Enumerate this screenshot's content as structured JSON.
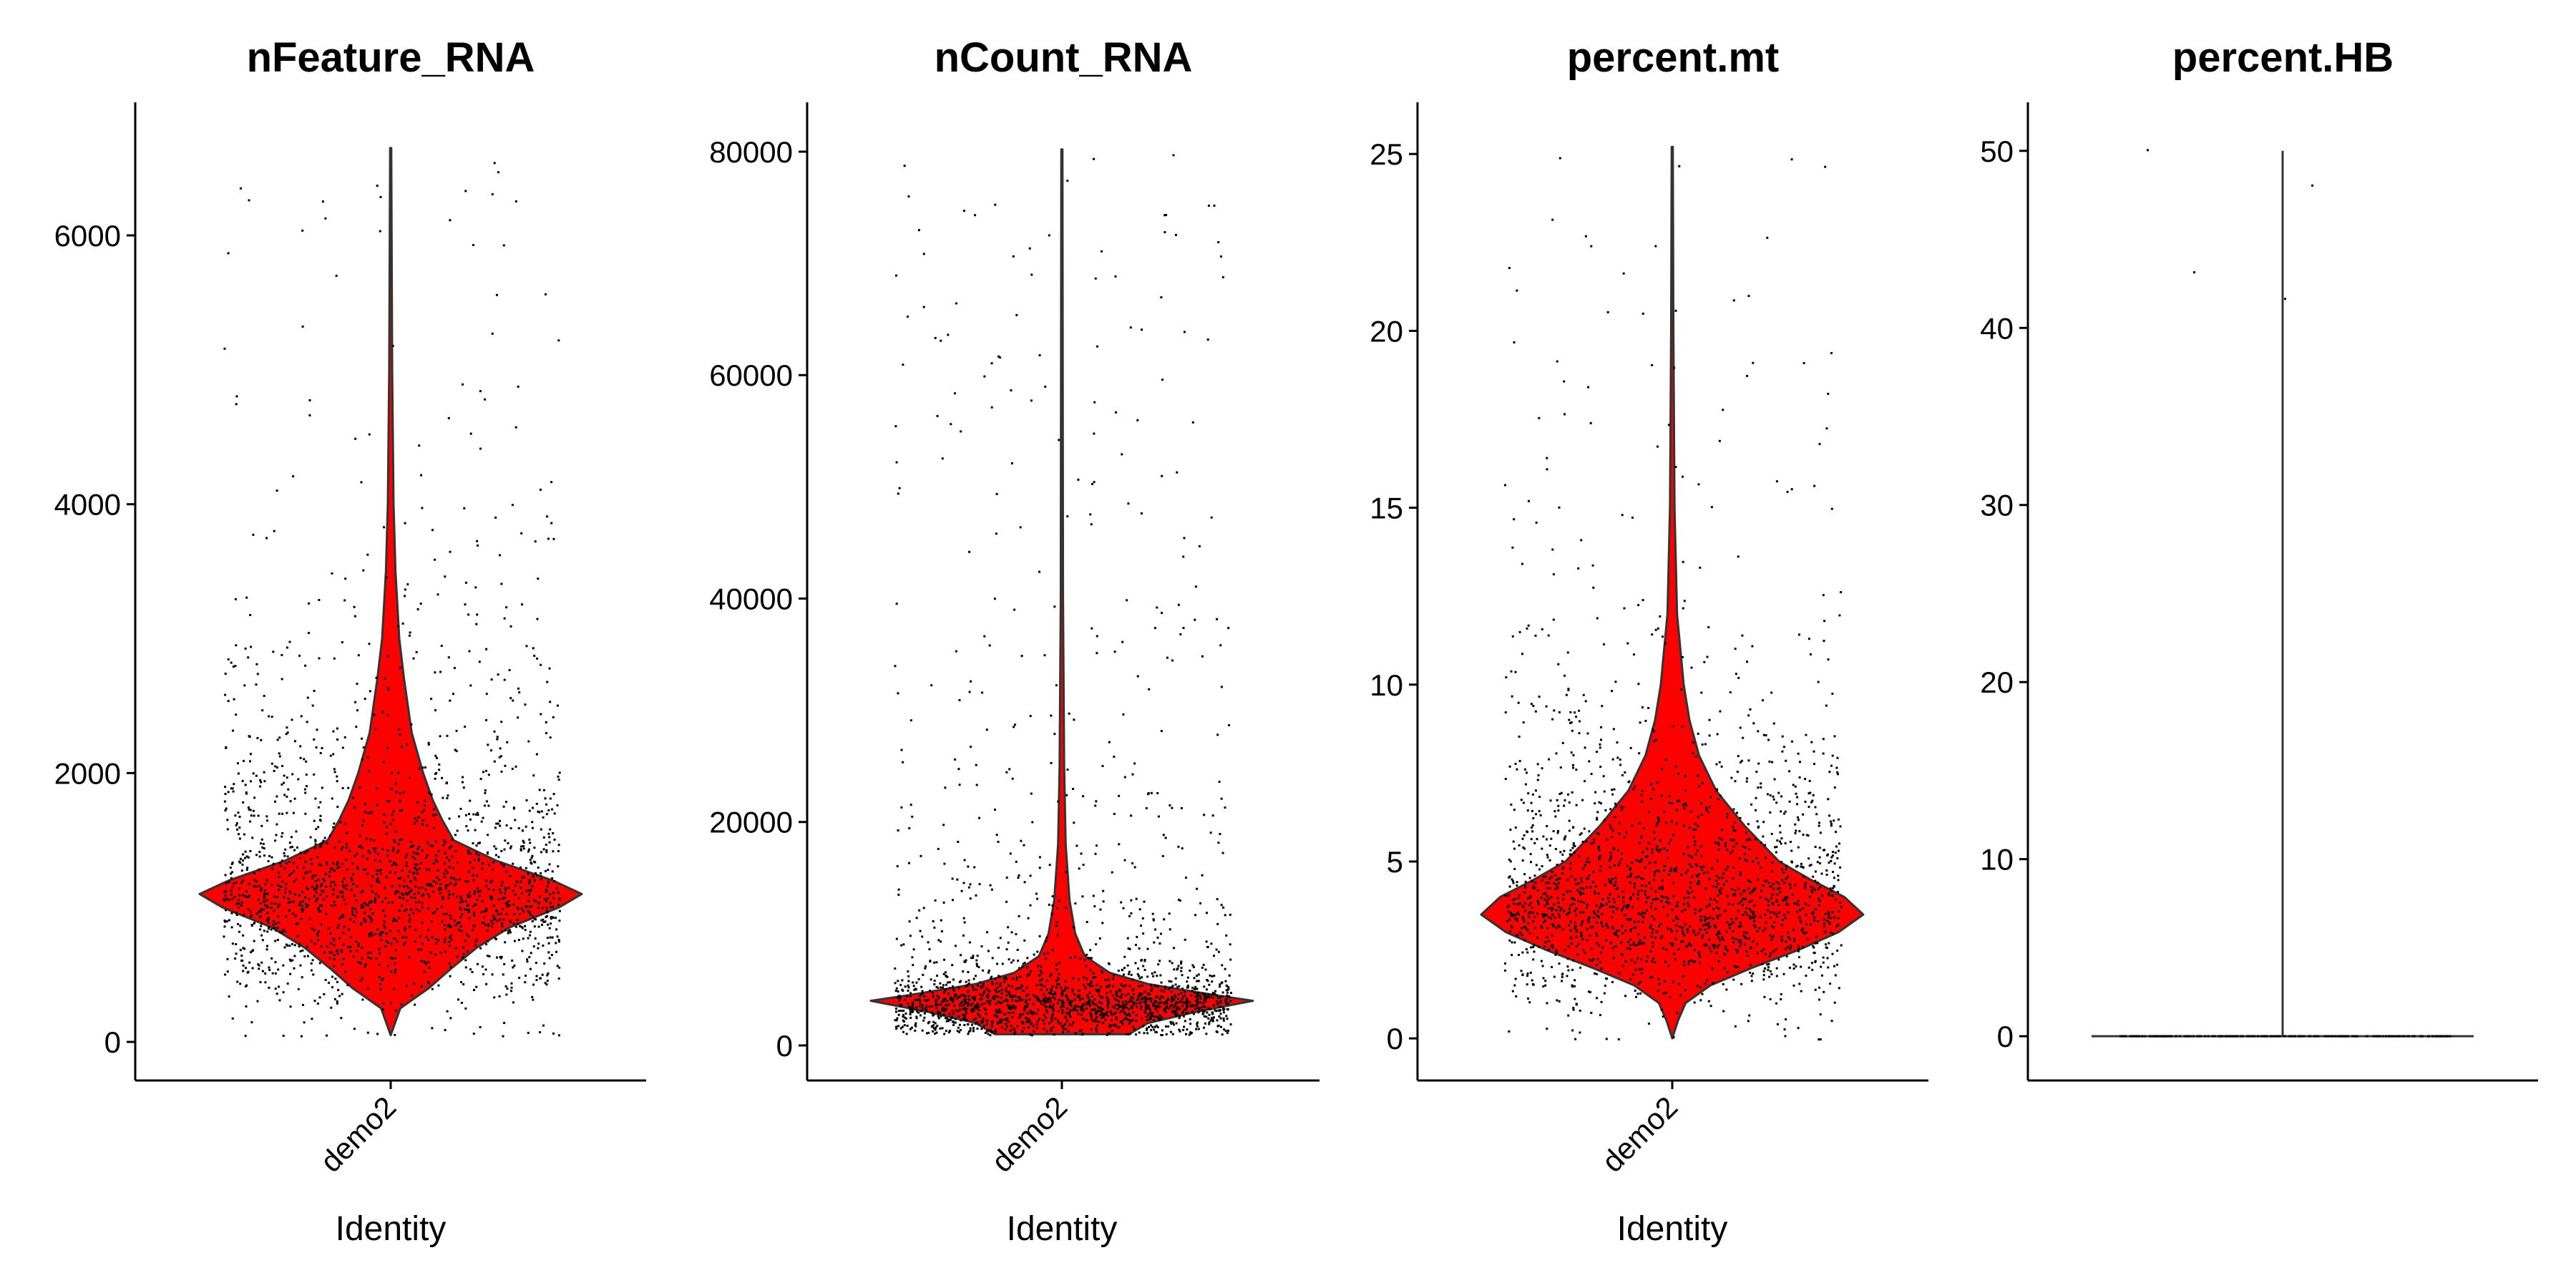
{
  "chart_data": [
    {
      "type": "violin",
      "title": "nFeature_RNA",
      "xlabel": "Identity",
      "categories": [
        "demo2"
      ],
      "ylim": [
        -287,
        6990
      ],
      "yticks": [
        0,
        2000,
        4000,
        6000
      ],
      "range": [
        50,
        6650
      ],
      "fill": "#FF0000",
      "density": [
        [
          50,
          0
        ],
        [
          250,
          0.05
        ],
        [
          400,
          0.2
        ],
        [
          550,
          0.32
        ],
        [
          700,
          0.45
        ],
        [
          850,
          0.62
        ],
        [
          1000,
          0.88
        ],
        [
          1100,
          1.0
        ],
        [
          1200,
          0.85
        ],
        [
          1350,
          0.55
        ],
        [
          1500,
          0.33
        ],
        [
          1650,
          0.27
        ],
        [
          1800,
          0.22
        ],
        [
          2000,
          0.17
        ],
        [
          2300,
          0.11
        ],
        [
          2700,
          0.07
        ],
        [
          3000,
          0.045
        ],
        [
          3500,
          0.025
        ],
        [
          4000,
          0.015
        ],
        [
          5000,
          0.008
        ],
        [
          6650,
          0.003
        ]
      ]
    },
    {
      "type": "violin",
      "title": "nCount_RNA",
      "xlabel": "Identity",
      "categories": [
        "demo2"
      ],
      "ylim": [
        -3138,
        84417
      ],
      "yticks": [
        0,
        20000,
        40000,
        60000,
        80000
      ],
      "range": [
        1000,
        80200
      ],
      "fill": "#FF0000",
      "density": [
        [
          1000,
          0.35
        ],
        [
          2000,
          0.45
        ],
        [
          3000,
          0.7
        ],
        [
          4000,
          1.0
        ],
        [
          4500,
          0.8
        ],
        [
          5500,
          0.45
        ],
        [
          6500,
          0.25
        ],
        [
          8000,
          0.12
        ],
        [
          10000,
          0.07
        ],
        [
          13000,
          0.04
        ],
        [
          18000,
          0.02
        ],
        [
          25000,
          0.012
        ],
        [
          40000,
          0.006
        ],
        [
          80200,
          0.003
        ]
      ]
    },
    {
      "type": "violin",
      "title": "percent.mt",
      "xlabel": "Identity",
      "categories": [
        "demo2"
      ],
      "ylim": [
        -1.19,
        26.46
      ],
      "yticks": [
        0,
        5,
        10,
        15,
        20,
        25
      ],
      "range": [
        0,
        25.2
      ],
      "fill": "#FF0000",
      "density": [
        [
          0,
          0
        ],
        [
          0.5,
          0.03
        ],
        [
          1,
          0.07
        ],
        [
          1.5,
          0.2
        ],
        [
          2,
          0.42
        ],
        [
          2.5,
          0.66
        ],
        [
          3,
          0.87
        ],
        [
          3.5,
          1.0
        ],
        [
          4,
          0.9
        ],
        [
          4.5,
          0.72
        ],
        [
          5,
          0.56
        ],
        [
          6,
          0.38
        ],
        [
          7,
          0.23
        ],
        [
          8,
          0.14
        ],
        [
          9,
          0.09
        ],
        [
          10,
          0.06
        ],
        [
          12,
          0.025
        ],
        [
          15,
          0.012
        ],
        [
          20,
          0.006
        ],
        [
          25.2,
          0.003
        ]
      ]
    },
    {
      "type": "violin",
      "title": "percent.HB",
      "xlabel": "",
      "categories": [],
      "ylim": [
        -2.5,
        52.74
      ],
      "yticks": [
        0,
        10,
        20,
        30,
        40,
        50
      ],
      "range": [
        0,
        50
      ],
      "fill": "#FF0000",
      "density": [
        [
          0,
          1.0
        ],
        [
          0.05,
          0.003
        ],
        [
          50,
          0.003
        ]
      ],
      "outliers": [
        50.1,
        48.1,
        43.2,
        41.7
      ]
    }
  ]
}
